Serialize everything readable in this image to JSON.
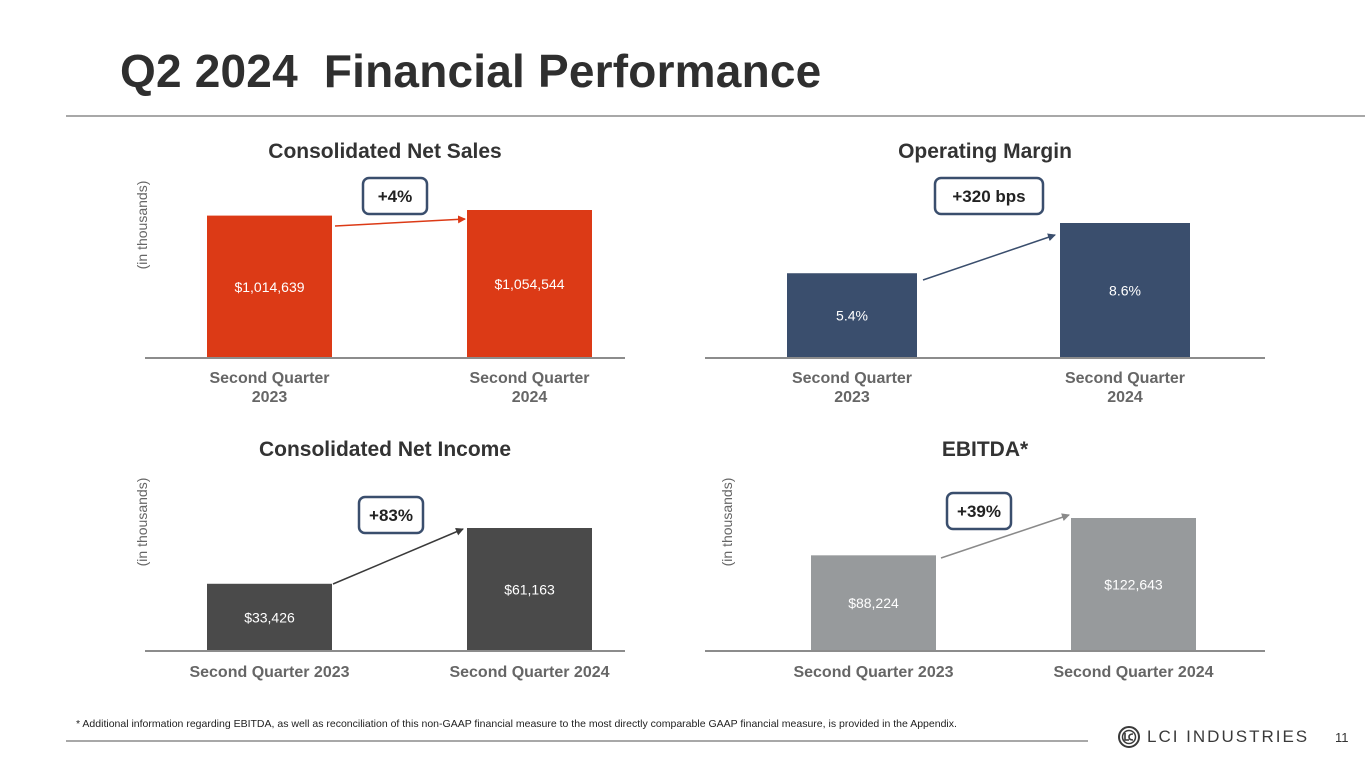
{
  "page": {
    "title": "Q2 2024  Financial Performance",
    "footnote": "* Additional information regarding EBITDA, as well as reconciliation of this non-GAAP financial measure to the most directly comparable GAAP financial measure, is provided in the Appendix.",
    "logo_text": "LCI INDUSTRIES",
    "page_number": "11"
  },
  "chart_data": [
    {
      "id": "net-sales",
      "type": "bar",
      "title": "Consolidated Net Sales",
      "ylabel": "(in thousands)",
      "categories": [
        [
          "Second Quarter",
          "2023"
        ],
        [
          "Second Quarter",
          "2024"
        ]
      ],
      "values": [
        1014639,
        1054544
      ],
      "value_labels": [
        "$1,014,639",
        "$1,054,544"
      ],
      "change_label": "+4%",
      "ylim": [
        0,
        1100000
      ],
      "bar_color": "#dc3a16",
      "arrow_color": "#dc3a16"
    },
    {
      "id": "operating-margin",
      "type": "bar",
      "title": "Operating Margin",
      "ylabel": "",
      "categories": [
        [
          "Second Quarter",
          "2023"
        ],
        [
          "Second Quarter",
          "2024"
        ]
      ],
      "values": [
        5.4,
        8.6
      ],
      "value_labels": [
        "5.4%",
        "8.6%"
      ],
      "change_label": "+320 bps",
      "ylim": [
        0,
        10
      ],
      "bar_color": "#3a4e6d",
      "arrow_color": "#3a4e6d"
    },
    {
      "id": "net-income",
      "type": "bar",
      "title": "Consolidated Net Income",
      "ylabel": "(in thousands)",
      "categories": [
        [
          "Second Quarter 2023"
        ],
        [
          "Second Quarter 2024"
        ]
      ],
      "values": [
        33426,
        61163
      ],
      "value_labels": [
        "$33,426",
        "$61,163"
      ],
      "change_label": "+83%",
      "ylim": [
        0,
        65000
      ],
      "bar_color": "#4a4a4a",
      "arrow_color": "#3a3a3a"
    },
    {
      "id": "ebitda",
      "type": "bar",
      "title": "EBITDA*",
      "ylabel": "(in thousands)",
      "categories": [
        [
          "Second Quarter 2023"
        ],
        [
          "Second Quarter 2024"
        ]
      ],
      "values": [
        88224,
        122643
      ],
      "value_labels": [
        "$88,224",
        "$122,643"
      ],
      "change_label": "+39%",
      "ylim": [
        0,
        130000
      ],
      "bar_color": "#979a9c",
      "arrow_color": "#8a8a8a"
    }
  ],
  "colors": {
    "badge_border": "#3a4e6d",
    "axis": "#8c8c8c"
  }
}
